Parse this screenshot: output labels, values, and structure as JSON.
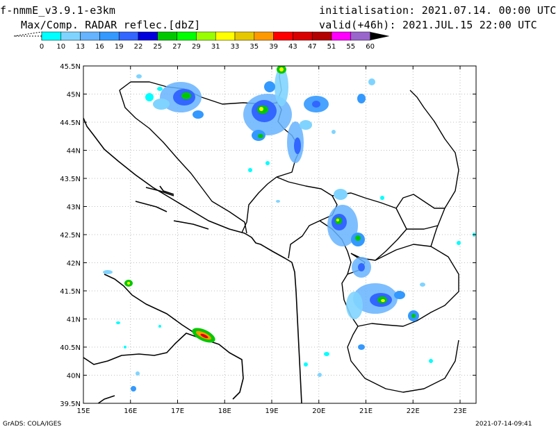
{
  "header": {
    "model": "f-nmmE_v3.9.1-e3km",
    "field": "Max/Comp. RADAR reflec.[dbZ]",
    "init": "initialisation: 2021.07.14. 00:00 UTC",
    "valid": "valid(+46h): 2021.JUL.15 22:00 UTC"
  },
  "colorbar": {
    "levels": [
      "0",
      "10",
      "13",
      "16",
      "19",
      "22",
      "25",
      "27",
      "29",
      "31",
      "33",
      "35",
      "39",
      "43",
      "47",
      "51",
      "55",
      "60"
    ],
    "colors": [
      "#00ffff",
      "#7fd4ff",
      "#66b3ff",
      "#3399ff",
      "#3366ff",
      "#0000dd",
      "#00c800",
      "#00ff00",
      "#99ff00",
      "#ffff00",
      "#e6c800",
      "#ff9900",
      "#ff0000",
      "#d90000",
      "#b30000",
      "#ff00ff",
      "#9966cc"
    ]
  },
  "map": {
    "lat_labels": [
      "45.5N",
      "45N",
      "44.5N",
      "44N",
      "43.5N",
      "43N",
      "42.5N",
      "42N",
      "41.5N",
      "41N",
      "40.5N",
      "40N",
      "39.5N"
    ],
    "lon_labels": [
      "15E",
      "16E",
      "17E",
      "18E",
      "19E",
      "20E",
      "21E",
      "22E",
      "23E"
    ]
  },
  "footer": {
    "left": "GrADS: COLA/IGES",
    "right": "2021-07-14-09:41"
  }
}
